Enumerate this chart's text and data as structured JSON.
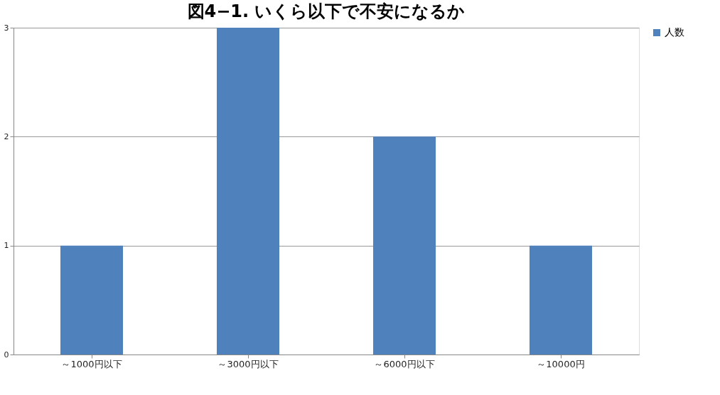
{
  "chart_data": {
    "type": "bar",
    "title": "図4−1. いくら以下で不安になるか",
    "categories": [
      "～1000円以下",
      "～3000円以下",
      "～6000円以下",
      "～10000円"
    ],
    "series": [
      {
        "name": "人数",
        "color": "#4f81bd",
        "values": [
          1,
          3,
          2,
          1
        ]
      }
    ],
    "ylim": [
      0,
      3
    ],
    "yticks": [
      0,
      1,
      2,
      3
    ],
    "grid": "y",
    "legend": "right"
  }
}
